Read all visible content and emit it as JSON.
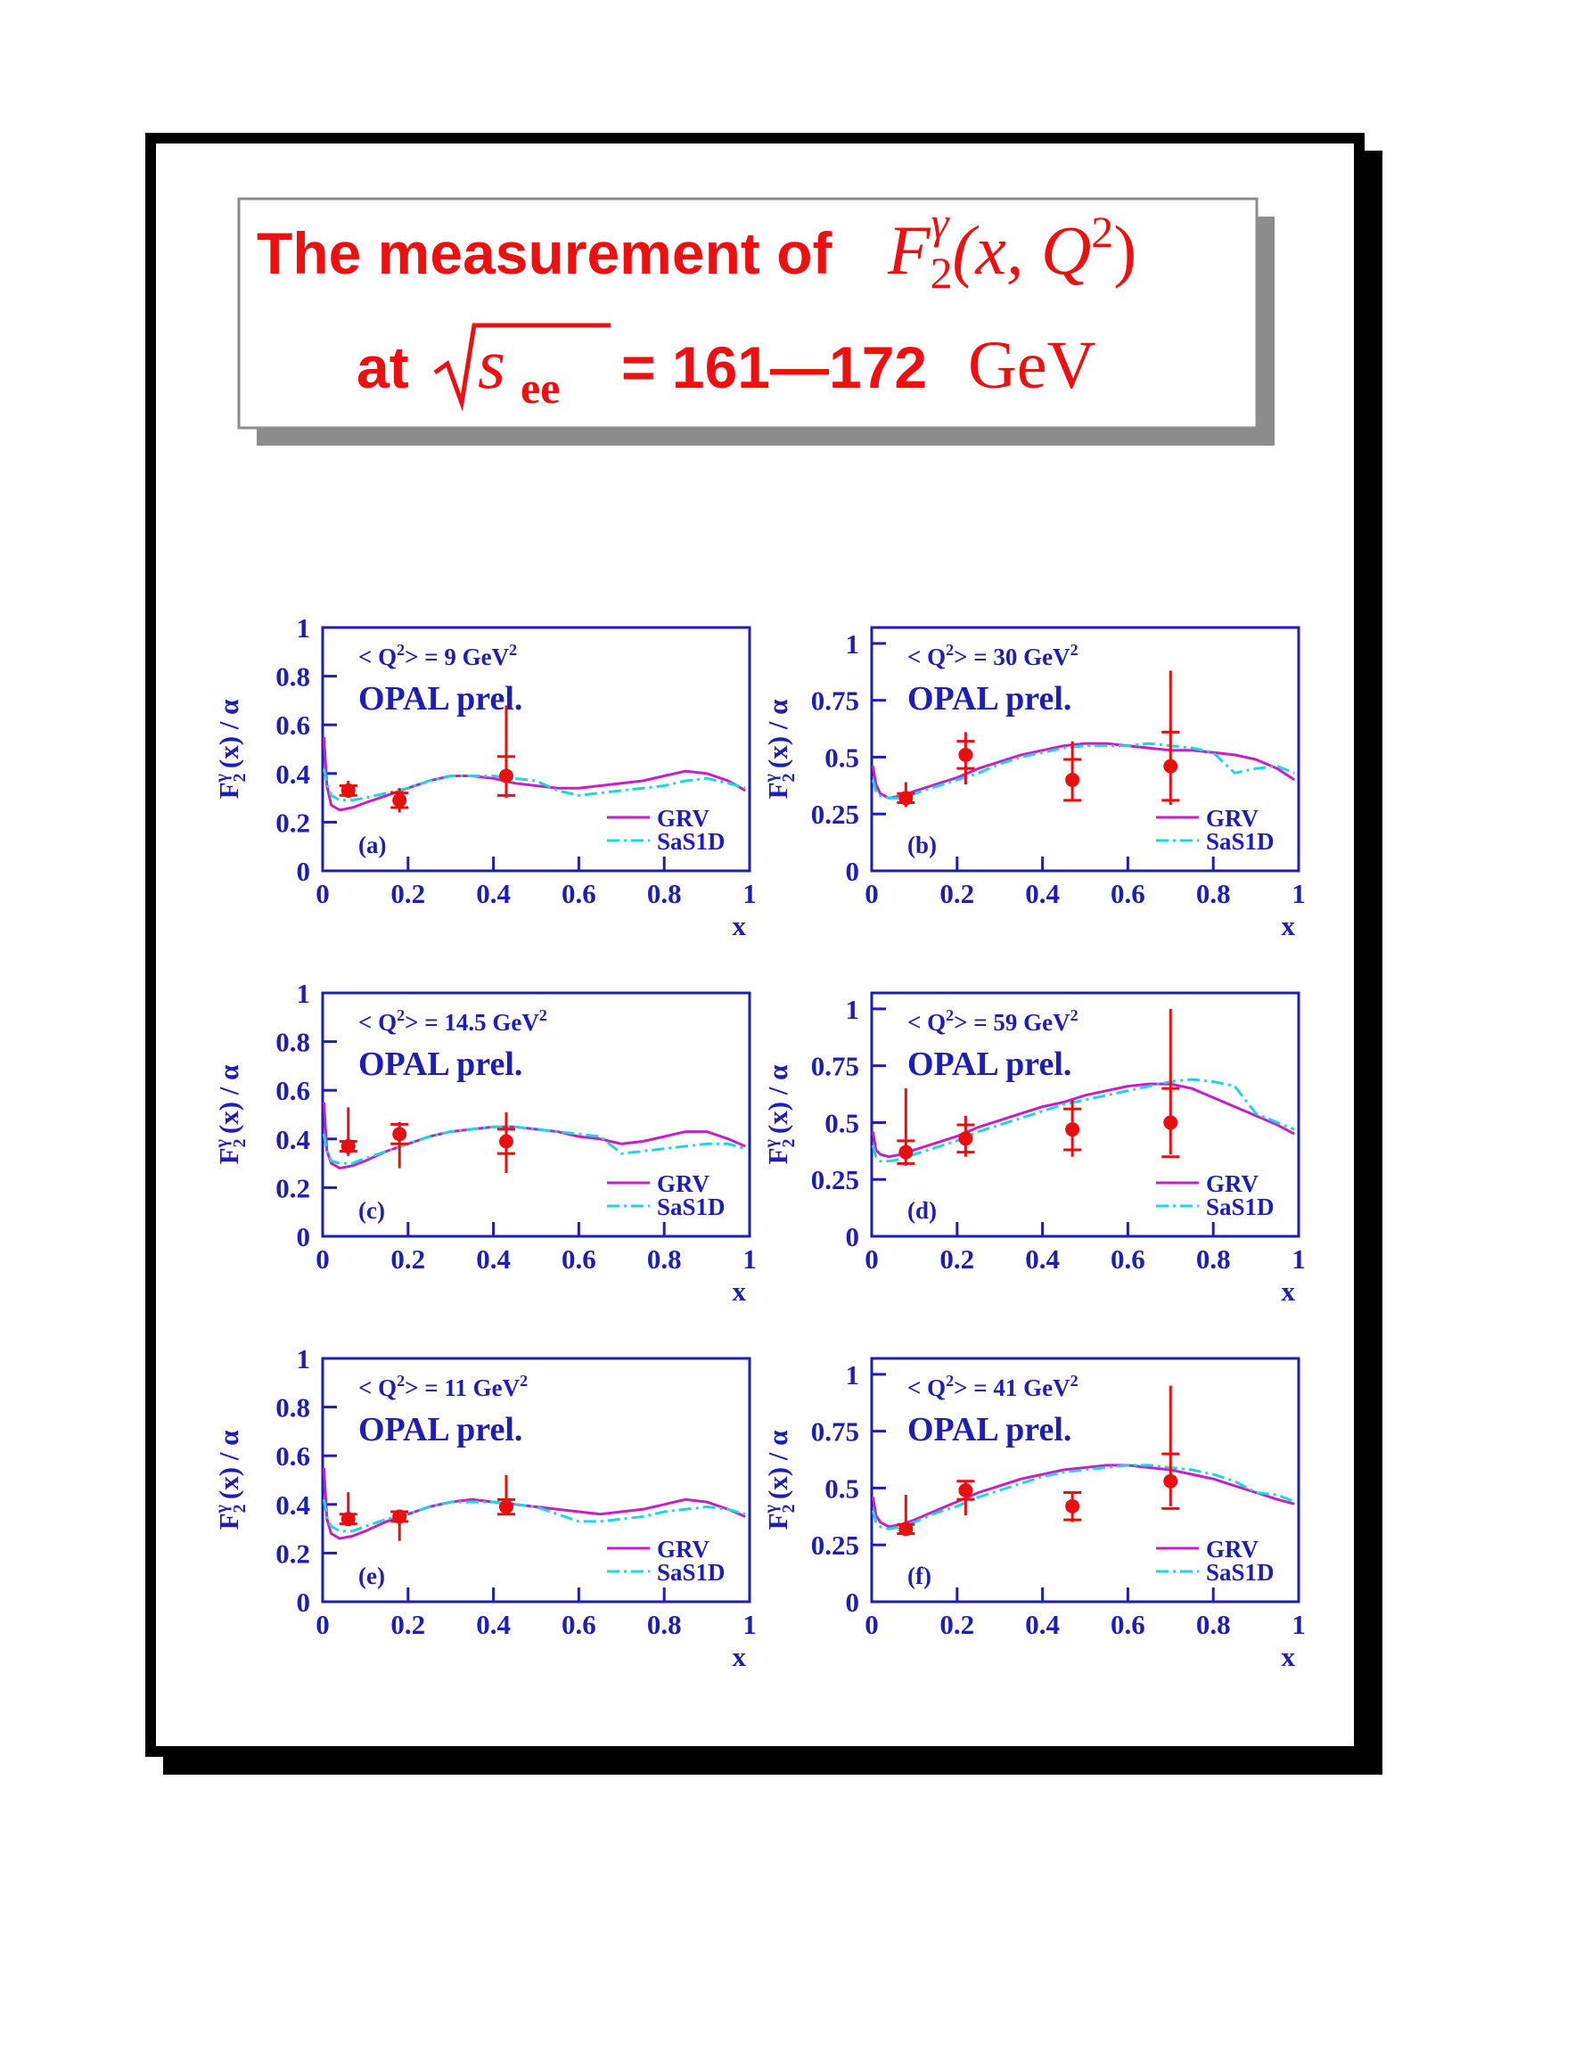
{
  "header": {
    "line1": {
      "text": "The measurement of",
      "F": "F",
      "sub": "2",
      "sup": "γ",
      "args": "(x, Q",
      "args_sup": "2",
      "close": ")"
    },
    "line2": {
      "at": "at",
      "s": "s",
      "sub": "ee",
      "eq": "= 161—172",
      "unit": "GeV"
    }
  },
  "chart_data": [
    {
      "type": "scatter",
      "panel": "(a)",
      "experiment": "OPAL prel.",
      "annotation": {
        "pre": "< Q",
        "sup1": "2",
        "mid": "> = 9 GeV",
        "sup2": "2"
      },
      "y_label": {
        "main": "F",
        "sub": "2",
        "sup": "γ",
        "rest": "(x) / α"
      },
      "x_label": "x",
      "xlim": [
        0,
        1
      ],
      "ylim": [
        0,
        1
      ],
      "xticks": [
        0,
        0.2,
        0.4,
        0.6,
        0.8,
        1
      ],
      "yticks": [
        0,
        0.2,
        0.4,
        0.6,
        0.8,
        1
      ],
      "legend": "lower right",
      "point_color": "#e8100f",
      "x": [
        0.06,
        0.18,
        0.43
      ],
      "values": [
        0.33,
        0.29,
        0.39
      ],
      "err_low": [
        0.03,
        0.05,
        0.09
      ],
      "err_high": [
        0.04,
        0.05,
        0.29
      ],
      "stat_err": [
        0.02,
        0.03,
        0.08
      ],
      "series": [
        {
          "name": "GRV",
          "color": "#c81ec8",
          "dash": "solid",
          "x": [
            0.003,
            0.01,
            0.02,
            0.04,
            0.07,
            0.1,
            0.15,
            0.2,
            0.25,
            0.3,
            0.35,
            0.4,
            0.45,
            0.5,
            0.55,
            0.6,
            0.65,
            0.7,
            0.75,
            0.8,
            0.85,
            0.9,
            0.95,
            0.99
          ],
          "values": [
            0.55,
            0.35,
            0.27,
            0.25,
            0.26,
            0.28,
            0.31,
            0.34,
            0.37,
            0.39,
            0.39,
            0.38,
            0.36,
            0.35,
            0.34,
            0.34,
            0.35,
            0.36,
            0.37,
            0.39,
            0.41,
            0.4,
            0.37,
            0.33
          ]
        },
        {
          "name": "SaS1D",
          "color": "#22d3e0",
          "dash": "dash-dot",
          "x": [
            0.003,
            0.01,
            0.02,
            0.04,
            0.07,
            0.1,
            0.15,
            0.2,
            0.25,
            0.3,
            0.35,
            0.4,
            0.45,
            0.5,
            0.55,
            0.6,
            0.65,
            0.7,
            0.75,
            0.8,
            0.85,
            0.9,
            0.95,
            0.99
          ],
          "values": [
            0.42,
            0.36,
            0.31,
            0.29,
            0.29,
            0.3,
            0.32,
            0.34,
            0.37,
            0.39,
            0.39,
            0.39,
            0.38,
            0.37,
            0.33,
            0.31,
            0.32,
            0.33,
            0.34,
            0.35,
            0.37,
            0.38,
            0.36,
            0.34
          ]
        }
      ]
    },
    {
      "type": "scatter",
      "panel": "(b)",
      "experiment": "OPAL prel.",
      "annotation": {
        "pre": "< Q",
        "sup1": "2",
        "mid": "> = 30 GeV",
        "sup2": "2"
      },
      "y_label": {
        "main": "F",
        "sub": "2",
        "sup": "γ",
        "rest": "(x) / α"
      },
      "x_label": "x",
      "xlim": [
        0,
        1
      ],
      "ylim": [
        0,
        1.07
      ],
      "xticks": [
        0,
        0.2,
        0.4,
        0.6,
        0.8,
        1
      ],
      "yticks": [
        0,
        0.25,
        0.5,
        0.75,
        1
      ],
      "legend": "lower right",
      "point_color": "#e8100f",
      "x": [
        0.08,
        0.22,
        0.47,
        0.7
      ],
      "values": [
        0.32,
        0.51,
        0.4,
        0.46
      ],
      "err_low": [
        0.04,
        0.13,
        0.09,
        0.17
      ],
      "err_high": [
        0.07,
        0.1,
        0.17,
        0.42
      ],
      "stat_err": [
        0.02,
        0.06,
        0.09,
        0.15
      ],
      "series": [
        {
          "name": "GRV",
          "color": "#c81ec8",
          "dash": "solid",
          "x": [
            0.003,
            0.01,
            0.02,
            0.04,
            0.07,
            0.1,
            0.15,
            0.2,
            0.25,
            0.3,
            0.35,
            0.4,
            0.45,
            0.5,
            0.55,
            0.6,
            0.65,
            0.7,
            0.75,
            0.8,
            0.85,
            0.9,
            0.95,
            0.99
          ],
          "values": [
            0.46,
            0.38,
            0.34,
            0.32,
            0.33,
            0.35,
            0.38,
            0.41,
            0.45,
            0.48,
            0.51,
            0.53,
            0.55,
            0.56,
            0.56,
            0.55,
            0.54,
            0.53,
            0.53,
            0.52,
            0.51,
            0.49,
            0.45,
            0.4
          ]
        },
        {
          "name": "SaS1D",
          "color": "#22d3e0",
          "dash": "dash-dot",
          "x": [
            0.003,
            0.01,
            0.02,
            0.04,
            0.07,
            0.1,
            0.15,
            0.2,
            0.25,
            0.3,
            0.35,
            0.4,
            0.45,
            0.5,
            0.55,
            0.6,
            0.65,
            0.7,
            0.75,
            0.8,
            0.85,
            0.9,
            0.95,
            0.99
          ],
          "values": [
            0.4,
            0.35,
            0.33,
            0.32,
            0.32,
            0.34,
            0.37,
            0.4,
            0.43,
            0.47,
            0.5,
            0.52,
            0.54,
            0.55,
            0.55,
            0.55,
            0.56,
            0.55,
            0.54,
            0.52,
            0.43,
            0.45,
            0.46,
            0.43
          ]
        }
      ]
    },
    {
      "type": "scatter",
      "panel": "(c)",
      "experiment": "OPAL prel.",
      "annotation": {
        "pre": "< Q",
        "sup1": "2",
        "mid": "> = 14.5 GeV",
        "sup2": "2"
      },
      "y_label": {
        "main": "F",
        "sub": "2",
        "sup": "γ",
        "rest": "(x) / α"
      },
      "x_label": "x",
      "xlim": [
        0,
        1
      ],
      "ylim": [
        0,
        1
      ],
      "xticks": [
        0,
        0.2,
        0.4,
        0.6,
        0.8,
        1
      ],
      "yticks": [
        0,
        0.2,
        0.4,
        0.6,
        0.8,
        1
      ],
      "legend": "lower right",
      "point_color": "#e8100f",
      "x": [
        0.06,
        0.18,
        0.43
      ],
      "values": [
        0.37,
        0.42,
        0.39
      ],
      "err_low": [
        0.04,
        0.14,
        0.13
      ],
      "err_high": [
        0.16,
        0.05,
        0.12
      ],
      "stat_err": [
        0.02,
        0.04,
        0.05
      ],
      "series": [
        {
          "name": "GRV",
          "color": "#c81ec8",
          "dash": "solid",
          "x": [
            0.003,
            0.01,
            0.02,
            0.04,
            0.07,
            0.1,
            0.15,
            0.2,
            0.25,
            0.3,
            0.35,
            0.4,
            0.45,
            0.5,
            0.55,
            0.6,
            0.65,
            0.7,
            0.75,
            0.8,
            0.85,
            0.9,
            0.95,
            0.99
          ],
          "values": [
            0.55,
            0.35,
            0.3,
            0.28,
            0.29,
            0.31,
            0.35,
            0.38,
            0.41,
            0.43,
            0.44,
            0.45,
            0.45,
            0.44,
            0.43,
            0.41,
            0.4,
            0.38,
            0.39,
            0.41,
            0.43,
            0.43,
            0.4,
            0.37
          ]
        },
        {
          "name": "SaS1D",
          "color": "#22d3e0",
          "dash": "dash-dot",
          "x": [
            0.003,
            0.01,
            0.02,
            0.04,
            0.07,
            0.1,
            0.15,
            0.2,
            0.25,
            0.3,
            0.35,
            0.4,
            0.45,
            0.5,
            0.55,
            0.6,
            0.65,
            0.7,
            0.75,
            0.8,
            0.85,
            0.9,
            0.95,
            0.99
          ],
          "values": [
            0.42,
            0.35,
            0.31,
            0.3,
            0.3,
            0.32,
            0.35,
            0.38,
            0.41,
            0.43,
            0.44,
            0.45,
            0.45,
            0.44,
            0.43,
            0.42,
            0.41,
            0.34,
            0.35,
            0.36,
            0.37,
            0.38,
            0.38,
            0.36
          ]
        }
      ]
    },
    {
      "type": "scatter",
      "panel": "(d)",
      "experiment": "OPAL prel.",
      "annotation": {
        "pre": "< Q",
        "sup1": "2",
        "mid": "> = 59 GeV",
        "sup2": "2"
      },
      "y_label": {
        "main": "F",
        "sub": "2",
        "sup": "γ",
        "rest": "(x) / α"
      },
      "x_label": "x",
      "xlim": [
        0,
        1
      ],
      "ylim": [
        0,
        1.07
      ],
      "xticks": [
        0,
        0.2,
        0.4,
        0.6,
        0.8,
        1
      ],
      "yticks": [
        0,
        0.25,
        0.5,
        0.75,
        1
      ],
      "legend": "lower right",
      "point_color": "#e8100f",
      "x": [
        0.08,
        0.22,
        0.47,
        0.7
      ],
      "values": [
        0.37,
        0.43,
        0.47,
        0.5
      ],
      "err_low": [
        0.06,
        0.08,
        0.12,
        0.14
      ],
      "err_high": [
        0.28,
        0.1,
        0.13,
        0.5
      ],
      "stat_err": [
        0.05,
        0.06,
        0.09,
        0.15
      ],
      "series": [
        {
          "name": "GRV",
          "color": "#c81ec8",
          "dash": "solid",
          "x": [
            0.003,
            0.01,
            0.02,
            0.04,
            0.07,
            0.1,
            0.15,
            0.2,
            0.25,
            0.3,
            0.35,
            0.4,
            0.45,
            0.5,
            0.55,
            0.6,
            0.65,
            0.7,
            0.75,
            0.8,
            0.85,
            0.9,
            0.95,
            0.99
          ],
          "values": [
            0.46,
            0.38,
            0.36,
            0.35,
            0.36,
            0.38,
            0.41,
            0.44,
            0.48,
            0.51,
            0.54,
            0.57,
            0.59,
            0.62,
            0.64,
            0.66,
            0.67,
            0.67,
            0.65,
            0.61,
            0.57,
            0.53,
            0.49,
            0.45
          ]
        },
        {
          "name": "SaS1D",
          "color": "#22d3e0",
          "dash": "dash-dot",
          "x": [
            0.003,
            0.01,
            0.02,
            0.04,
            0.07,
            0.1,
            0.15,
            0.2,
            0.25,
            0.3,
            0.35,
            0.4,
            0.45,
            0.5,
            0.55,
            0.6,
            0.65,
            0.7,
            0.75,
            0.8,
            0.85,
            0.9,
            0.95,
            0.99
          ],
          "values": [
            0.4,
            0.35,
            0.33,
            0.33,
            0.34,
            0.36,
            0.39,
            0.42,
            0.46,
            0.49,
            0.52,
            0.55,
            0.58,
            0.6,
            0.62,
            0.64,
            0.66,
            0.68,
            0.69,
            0.68,
            0.66,
            0.54,
            0.5,
            0.47
          ]
        }
      ]
    },
    {
      "type": "scatter",
      "panel": "(e)",
      "experiment": "OPAL prel.",
      "annotation": {
        "pre": "< Q",
        "sup1": "2",
        "mid": "> = 11 GeV",
        "sup2": "2"
      },
      "y_label": {
        "main": "F",
        "sub": "2",
        "sup": "γ",
        "rest": "(x) / α"
      },
      "x_label": "x",
      "xlim": [
        0,
        1
      ],
      "ylim": [
        0,
        1
      ],
      "xticks": [
        0,
        0.2,
        0.4,
        0.6,
        0.8,
        1
      ],
      "yticks": [
        0,
        0.2,
        0.4,
        0.6,
        0.8,
        1
      ],
      "legend": "lower right",
      "point_color": "#e8100f",
      "x": [
        0.06,
        0.18,
        0.43
      ],
      "values": [
        0.34,
        0.35,
        0.39
      ],
      "err_low": [
        0.02,
        0.1,
        0.03
      ],
      "err_high": [
        0.11,
        0.02,
        0.13
      ],
      "stat_err": [
        0.02,
        0.02,
        0.03
      ],
      "series": [
        {
          "name": "GRV",
          "color": "#c81ec8",
          "dash": "solid",
          "x": [
            0.003,
            0.01,
            0.02,
            0.04,
            0.07,
            0.1,
            0.15,
            0.2,
            0.25,
            0.3,
            0.35,
            0.4,
            0.45,
            0.5,
            0.55,
            0.6,
            0.65,
            0.7,
            0.75,
            0.8,
            0.85,
            0.9,
            0.95,
            0.99
          ],
          "values": [
            0.55,
            0.34,
            0.28,
            0.26,
            0.27,
            0.29,
            0.33,
            0.36,
            0.39,
            0.41,
            0.42,
            0.41,
            0.4,
            0.39,
            0.38,
            0.37,
            0.36,
            0.37,
            0.38,
            0.4,
            0.42,
            0.41,
            0.38,
            0.35
          ]
        },
        {
          "name": "SaS1D",
          "color": "#22d3e0",
          "dash": "dash-dot",
          "x": [
            0.003,
            0.01,
            0.02,
            0.04,
            0.07,
            0.1,
            0.15,
            0.2,
            0.25,
            0.3,
            0.35,
            0.4,
            0.45,
            0.5,
            0.55,
            0.6,
            0.65,
            0.7,
            0.75,
            0.8,
            0.85,
            0.9,
            0.95,
            0.99
          ],
          "values": [
            0.42,
            0.35,
            0.31,
            0.29,
            0.29,
            0.31,
            0.34,
            0.36,
            0.39,
            0.41,
            0.41,
            0.41,
            0.4,
            0.39,
            0.36,
            0.33,
            0.33,
            0.34,
            0.35,
            0.37,
            0.38,
            0.39,
            0.38,
            0.36
          ]
        }
      ]
    },
    {
      "type": "scatter",
      "panel": "(f)",
      "experiment": "OPAL prel.",
      "annotation": {
        "pre": "< Q",
        "sup1": "2",
        "mid": "> = 41 GeV",
        "sup2": "2"
      },
      "y_label": {
        "main": "F",
        "sub": "2",
        "sup": "γ",
        "rest": "(x) / α"
      },
      "x_label": "x",
      "xlim": [
        0,
        1
      ],
      "ylim": [
        0,
        1.07
      ],
      "xticks": [
        0,
        0.2,
        0.4,
        0.6,
        0.8,
        1
      ],
      "yticks": [
        0,
        0.25,
        0.5,
        0.75,
        1
      ],
      "legend": "lower right",
      "point_color": "#e8100f",
      "x": [
        0.08,
        0.22,
        0.47,
        0.7
      ],
      "values": [
        0.32,
        0.49,
        0.42,
        0.53
      ],
      "err_low": [
        0.02,
        0.11,
        0.07,
        0.11
      ],
      "err_high": [
        0.15,
        0.04,
        0.06,
        0.42
      ],
      "stat_err": [
        0.02,
        0.04,
        0.06,
        0.12
      ],
      "series": [
        {
          "name": "GRV",
          "color": "#c81ec8",
          "dash": "solid",
          "x": [
            0.003,
            0.01,
            0.02,
            0.04,
            0.07,
            0.1,
            0.15,
            0.2,
            0.25,
            0.3,
            0.35,
            0.4,
            0.45,
            0.5,
            0.55,
            0.6,
            0.65,
            0.7,
            0.75,
            0.8,
            0.85,
            0.9,
            0.95,
            0.99
          ],
          "values": [
            0.46,
            0.38,
            0.35,
            0.33,
            0.34,
            0.36,
            0.4,
            0.44,
            0.48,
            0.51,
            0.54,
            0.56,
            0.58,
            0.59,
            0.6,
            0.6,
            0.59,
            0.58,
            0.56,
            0.54,
            0.51,
            0.48,
            0.45,
            0.43
          ]
        },
        {
          "name": "SaS1D",
          "color": "#22d3e0",
          "dash": "dash-dot",
          "x": [
            0.003,
            0.01,
            0.02,
            0.04,
            0.07,
            0.1,
            0.15,
            0.2,
            0.25,
            0.3,
            0.35,
            0.4,
            0.45,
            0.5,
            0.55,
            0.6,
            0.65,
            0.7,
            0.75,
            0.8,
            0.85,
            0.9,
            0.95,
            0.99
          ],
          "values": [
            0.4,
            0.35,
            0.33,
            0.32,
            0.33,
            0.35,
            0.39,
            0.42,
            0.46,
            0.49,
            0.52,
            0.55,
            0.57,
            0.58,
            0.59,
            0.6,
            0.6,
            0.59,
            0.58,
            0.56,
            0.53,
            0.48,
            0.47,
            0.44
          ]
        }
      ]
    }
  ]
}
